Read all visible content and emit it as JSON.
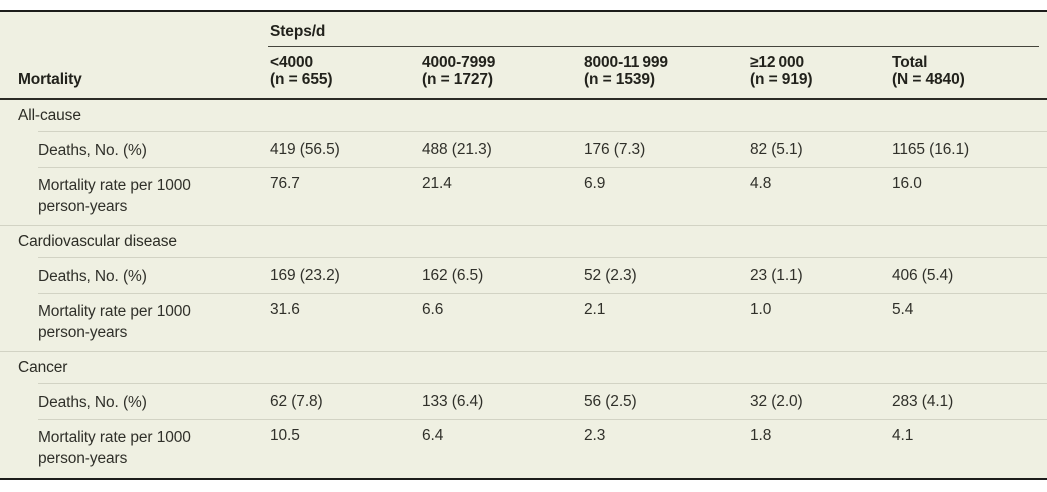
{
  "colors": {
    "table_background": "#eff0e2",
    "heavy_rule": "#1d1d1b",
    "header_rule": "#2b2b25",
    "hairline": "#d2d3c4",
    "text": "#30302a"
  },
  "table": {
    "spanner_label": "Steps/d",
    "row_header_label": "Mortality",
    "columns": [
      {
        "range": "<4000",
        "n": "(n = 655)"
      },
      {
        "range": "4000-7999",
        "n": "(n = 1727)"
      },
      {
        "range": "8000-11 999",
        "n": "(n = 1539)"
      },
      {
        "range": "≥12 000",
        "n": "(n = 919)"
      },
      {
        "range": "Total",
        "n": "(N = 4840)"
      }
    ],
    "sections": [
      {
        "label": "All-cause",
        "rows": [
          {
            "label": "Deaths, No. (%)",
            "values": [
              "419 (56.5)",
              "488 (21.3)",
              "176 (7.3)",
              "82 (5.1)",
              "1165 (16.1)"
            ]
          },
          {
            "label": "Mortality rate per 1000 person-years",
            "values": [
              "76.7",
              "21.4",
              "6.9",
              "4.8",
              "16.0"
            ]
          }
        ]
      },
      {
        "label": "Cardiovascular disease",
        "rows": [
          {
            "label": "Deaths, No. (%)",
            "values": [
              "169 (23.2)",
              "162 (6.5)",
              "52 (2.3)",
              "23 (1.1)",
              "406 (5.4)"
            ]
          },
          {
            "label": "Mortality rate per 1000 person-years",
            "values": [
              "31.6",
              "6.6",
              "2.1",
              "1.0",
              "5.4"
            ]
          }
        ]
      },
      {
        "label": "Cancer",
        "rows": [
          {
            "label": "Deaths, No. (%)",
            "values": [
              "62 (7.8)",
              "133 (6.4)",
              "56 (2.5)",
              "32 (2.0)",
              "283 (4.1)"
            ]
          },
          {
            "label": "Mortality rate per 1000 person-years",
            "values": [
              "10.5",
              "6.4",
              "2.3",
              "1.8",
              "4.1"
            ]
          }
        ]
      }
    ]
  }
}
